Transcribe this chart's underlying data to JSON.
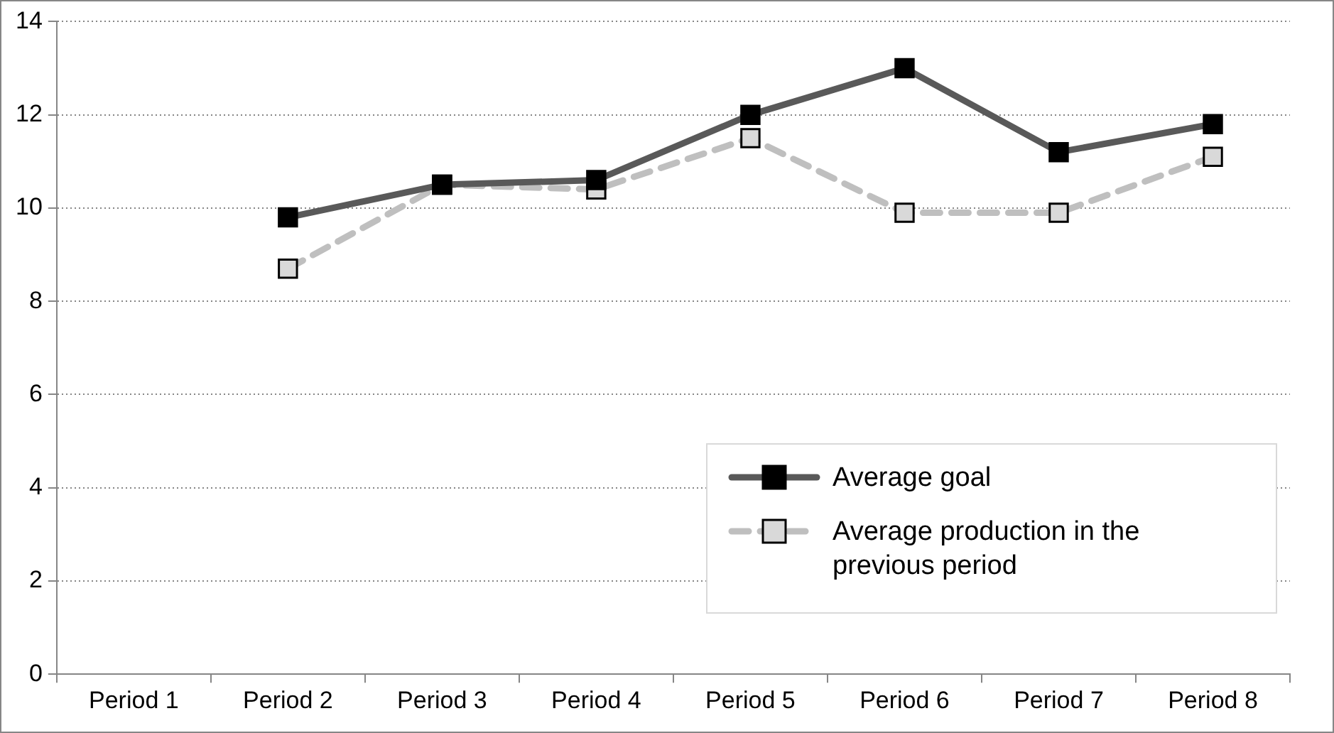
{
  "chart_data": {
    "type": "line",
    "categories": [
      "Period 1",
      "Period 2",
      "Period 3",
      "Period 4",
      "Period 5",
      "Period 6",
      "Period 7",
      "Period 8"
    ],
    "series": [
      {
        "name": "Average goal",
        "color": "#595959",
        "values": [
          null,
          9.8,
          10.5,
          10.6,
          12.0,
          13.0,
          11.2,
          11.8
        ],
        "line_style": "solid",
        "marker": "square"
      },
      {
        "name": "Average production in the previous period",
        "color": "#bfbfbf",
        "values": [
          null,
          8.7,
          10.5,
          10.4,
          11.5,
          9.9,
          9.9,
          11.1
        ],
        "line_style": "dashed",
        "marker": "square"
      }
    ],
    "ylim": [
      0,
      14
    ],
    "yticks": [
      0,
      2,
      4,
      6,
      8,
      10,
      12,
      14
    ],
    "grid": "y",
    "legend": "bottom right"
  }
}
